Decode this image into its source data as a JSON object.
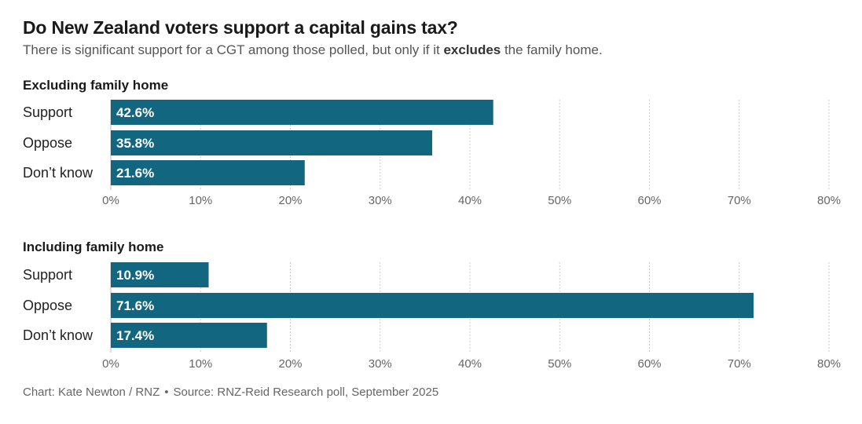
{
  "title": "Do New Zealand voters support a capital gains tax?",
  "subtitle": {
    "before": "There is significant support for a CGT among those polled, but only if it ",
    "emphasis": "excludes",
    "after": " the family home."
  },
  "footer": {
    "chart_credit": "Chart: Kate Newton / RNZ",
    "separator": "•",
    "source": "Source: RNZ-Reid Research poll, September 2025"
  },
  "colors": {
    "bar": "#136680",
    "grid": "#cccccc",
    "axis": "#bbbbbb"
  },
  "chart_data": [
    {
      "type": "bar",
      "orientation": "horizontal",
      "title": "Excluding family home",
      "categories": [
        "Support",
        "Oppose",
        "Don’t know"
      ],
      "values": [
        42.6,
        35.8,
        21.6
      ],
      "value_labels": [
        "42.6%",
        "35.8%",
        "21.6%"
      ],
      "xlim": [
        0,
        80
      ],
      "ticks": [
        0,
        10,
        20,
        30,
        40,
        50,
        60,
        70,
        80
      ],
      "tick_labels": [
        "0%",
        "10%",
        "20%",
        "30%",
        "40%",
        "50%",
        "60%",
        "70%",
        "80%"
      ],
      "grid": true
    },
    {
      "type": "bar",
      "orientation": "horizontal",
      "title": "Including family home",
      "categories": [
        "Support",
        "Oppose",
        "Don’t know"
      ],
      "values": [
        10.9,
        71.6,
        17.4
      ],
      "value_labels": [
        "10.9%",
        "71.6%",
        "17.4%"
      ],
      "xlim": [
        0,
        80
      ],
      "ticks": [
        0,
        10,
        20,
        30,
        40,
        50,
        60,
        70,
        80
      ],
      "tick_labels": [
        "0%",
        "10%",
        "20%",
        "30%",
        "40%",
        "50%",
        "60%",
        "70%",
        "80%"
      ],
      "grid": true
    }
  ]
}
